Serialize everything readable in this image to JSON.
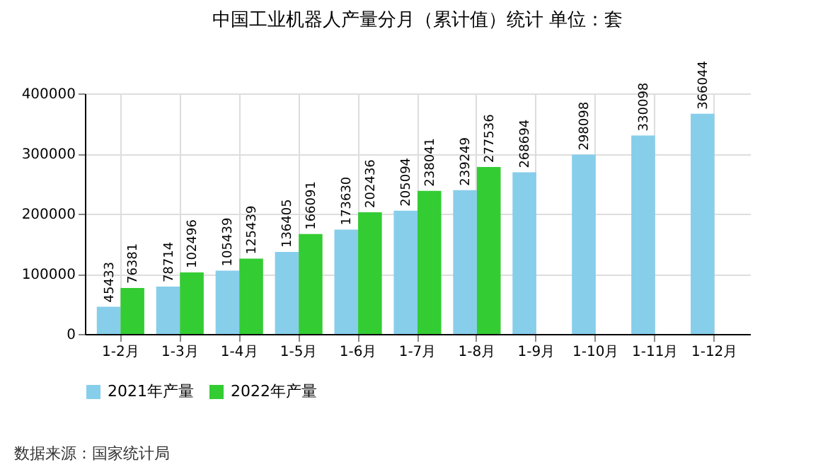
{
  "chart_data": {
    "type": "bar",
    "title": "中国工业机器人产量分月（累计值）统计  单位：套",
    "categories": [
      "1-2月",
      "1-3月",
      "1-4月",
      "1-5月",
      "1-6月",
      "1-7月",
      "1-8月",
      "1-9月",
      "1-10月",
      "1-11月",
      "1-12月"
    ],
    "series": [
      {
        "name": "2021年产量",
        "color": "#87ceeb",
        "values": [
          45433,
          78714,
          105439,
          136405,
          173630,
          205094,
          239249,
          268694,
          298098,
          330098,
          366044
        ]
      },
      {
        "name": "2022年产量",
        "color": "#33cc33",
        "values": [
          76381,
          102496,
          125439,
          166091,
          202436,
          238041,
          277536,
          null,
          null,
          null,
          null
        ]
      }
    ],
    "ylim": [
      0,
      400000
    ],
    "yticks": [
      0,
      100000,
      200000,
      300000,
      400000
    ],
    "grid": true,
    "legend": "bottom",
    "data_labels": true,
    "annotations": [
      "数据来源：国家统计局"
    ]
  }
}
